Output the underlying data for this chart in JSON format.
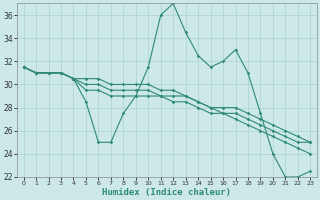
{
  "xlabel": "Humidex (Indice chaleur)",
  "bg_color": "#cce8e8",
  "grid_color": "#b0d4d4",
  "line_color": "#2e8b72",
  "xlim": [
    -0.5,
    23.5
  ],
  "ylim": [
    22,
    37
  ],
  "yticks": [
    22,
    24,
    26,
    28,
    30,
    32,
    34,
    36
  ],
  "xticks": [
    0,
    1,
    2,
    3,
    4,
    5,
    6,
    7,
    8,
    9,
    10,
    11,
    12,
    13,
    14,
    15,
    16,
    17,
    18,
    19,
    20,
    21,
    22,
    23
  ],
  "lines": [
    [
      31.5,
      31.0,
      31.0,
      31.0,
      30.5,
      28.5,
      25.0,
      25.0,
      27.5,
      29.0,
      31.5,
      36.0,
      37.0,
      34.5,
      32.5,
      31.5,
      32.0,
      33.0,
      31.0,
      27.5,
      24.0,
      22.0,
      22.0,
      22.5
    ],
    [
      31.5,
      31.0,
      31.0,
      31.0,
      30.5,
      29.5,
      29.5,
      29.0,
      29.0,
      29.0,
      29.0,
      29.0,
      28.5,
      28.5,
      28.0,
      27.5,
      27.5,
      27.5,
      27.0,
      26.5,
      26.0,
      25.5,
      25.0,
      25.0
    ],
    [
      31.5,
      31.0,
      31.0,
      31.0,
      30.5,
      30.0,
      30.0,
      29.5,
      29.5,
      29.5,
      29.5,
      29.0,
      29.0,
      29.0,
      28.5,
      28.0,
      28.0,
      28.0,
      27.5,
      27.0,
      26.5,
      26.0,
      25.5,
      25.0
    ],
    [
      31.5,
      31.0,
      31.0,
      31.0,
      30.5,
      30.5,
      30.5,
      30.0,
      30.0,
      30.0,
      30.0,
      29.5,
      29.5,
      29.0,
      28.5,
      28.0,
      27.5,
      27.0,
      26.5,
      26.0,
      25.5,
      25.0,
      24.5,
      24.0
    ]
  ]
}
